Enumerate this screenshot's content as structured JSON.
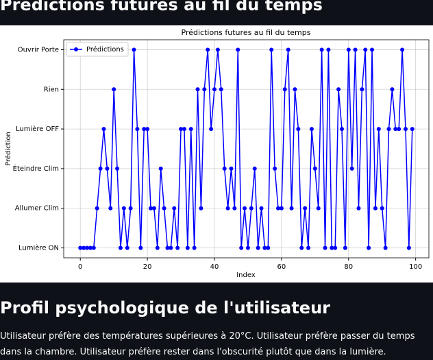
{
  "header": {
    "title": "Prédictions futures au fil du temps"
  },
  "chart_data": {
    "type": "line",
    "title": "Prédictions futures au fil du temps",
    "xlabel": "Index",
    "ylabel": "Prédiction",
    "x": [
      0,
      1,
      2,
      3,
      4,
      5,
      6,
      7,
      8,
      9,
      10,
      11,
      12,
      13,
      14,
      15,
      16,
      17,
      18,
      19,
      20,
      21,
      22,
      23,
      24,
      25,
      26,
      27,
      28,
      29,
      30,
      31,
      32,
      33,
      34,
      35,
      36,
      37,
      38,
      39,
      40,
      41,
      42,
      43,
      44,
      45,
      46,
      47,
      48,
      49,
      50,
      51,
      52,
      53,
      54,
      55,
      56,
      57,
      58,
      59,
      60,
      61,
      62,
      63,
      64,
      65,
      66,
      67,
      68,
      69,
      70,
      71,
      72,
      73,
      74,
      75,
      76,
      77,
      78,
      79,
      80,
      81,
      82,
      83,
      84,
      85,
      86,
      87,
      88,
      89,
      90,
      91,
      92,
      93,
      94,
      95,
      96,
      97,
      98,
      99
    ],
    "series": [
      {
        "name": "Prédictions",
        "color": "#0000ff",
        "values": [
          0,
          0,
          0,
          0,
          0,
          1,
          2,
          3,
          2,
          1,
          4,
          2,
          0,
          1,
          0,
          1,
          5,
          3,
          0,
          3,
          3,
          1,
          1,
          0,
          2,
          1,
          0,
          0,
          1,
          0,
          3,
          3,
          0,
          3,
          0,
          4,
          1,
          4,
          5,
          3,
          4,
          5,
          4,
          2,
          1,
          2,
          1,
          5,
          0,
          1,
          0,
          1,
          2,
          0,
          1,
          0,
          0,
          5,
          2,
          1,
          1,
          4,
          5,
          1,
          4,
          3,
          0,
          1,
          0,
          3,
          2,
          1,
          5,
          0,
          5,
          0,
          0,
          4,
          3,
          0,
          5,
          2,
          5,
          1,
          4,
          5,
          0,
          5,
          1,
          3,
          1,
          0,
          3,
          4,
          3,
          3,
          5,
          3,
          0,
          3
        ]
      }
    ],
    "xlim": [
      -4.95,
      103.95
    ],
    "xticks": [
      0,
      20,
      40,
      60,
      80,
      100
    ],
    "ylim": [
      -0.25,
      5.25
    ],
    "yticks": [
      {
        "value": 0,
        "label": "Lumière ON"
      },
      {
        "value": 1,
        "label": "Allumer Clim"
      },
      {
        "value": 2,
        "label": "Éteindre Clim"
      },
      {
        "value": 3,
        "label": "Lumière OFF"
      },
      {
        "value": 4,
        "label": "Rien"
      },
      {
        "value": 5,
        "label": "Ouvrir Porte"
      }
    ],
    "grid": true,
    "legend": "upper left"
  },
  "profile": {
    "title": "Profil psychologique de l'utilisateur",
    "text": "Utilisateur préfère des températures supérieures à 20°C. Utilisateur préfère passer du temps dans la chambre. Utilisateur préfère rester dans l'obscurité plutôt que dans la lumière."
  }
}
